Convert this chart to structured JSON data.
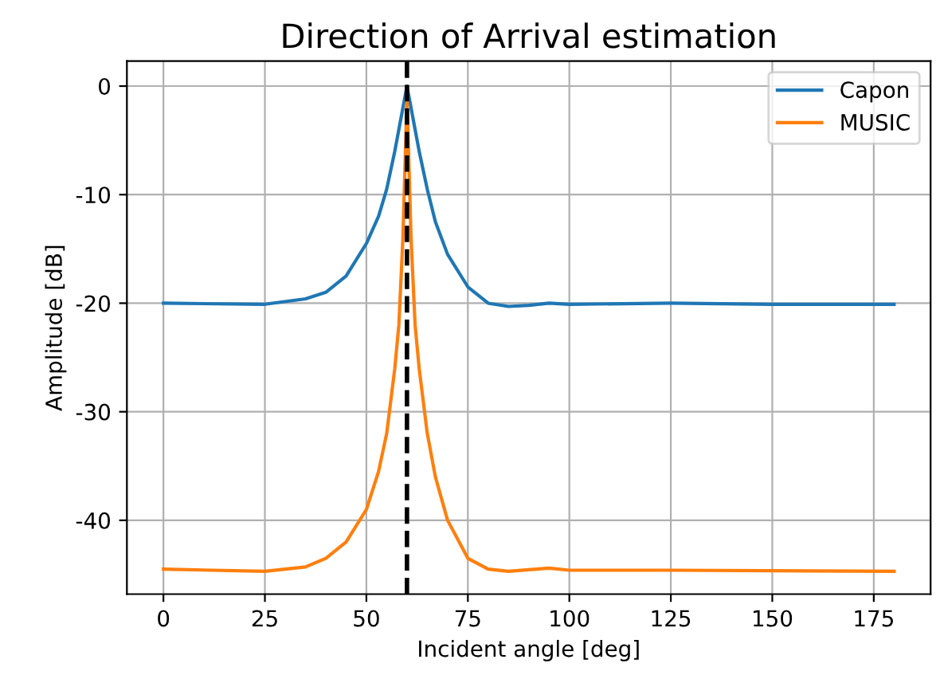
{
  "chart_data": {
    "type": "line",
    "title": "Direction of Arrival estimation",
    "xlabel": "Incident angle [deg]",
    "ylabel": "Amplitude [dB]",
    "xlim": [
      -9,
      189
    ],
    "xticks": [
      0,
      25,
      50,
      75,
      100,
      125,
      150,
      175
    ],
    "ylim": [
      -46.8,
      2.3
    ],
    "yticks": [
      -40,
      -30,
      -20,
      -10,
      0
    ],
    "grid": true,
    "legend": "top right",
    "line_style": "solid",
    "series": [
      {
        "name": "Capon",
        "color": "#1f77b4",
        "x": [
          0,
          25,
          35,
          40,
          45,
          50,
          53,
          55,
          57,
          58,
          59,
          60,
          61,
          62,
          63,
          65,
          67,
          70,
          75,
          80,
          85,
          90,
          95,
          100,
          125,
          150,
          180
        ],
        "values": [
          -20,
          -20.1,
          -19.6,
          -19,
          -17.5,
          -14.5,
          -12,
          -9.5,
          -6,
          -4,
          -2,
          0,
          -2,
          -4,
          -6,
          -9.5,
          -12.5,
          -15.5,
          -18.5,
          -20,
          -20.3,
          -20.2,
          -20,
          -20.1,
          -20,
          -20.1,
          -20.1
        ]
      },
      {
        "name": "MUSIC",
        "color": "#ff7f0e",
        "x": [
          0,
          25,
          35,
          40,
          45,
          50,
          53,
          55,
          57,
          58,
          59,
          60,
          61,
          62,
          63,
          65,
          67,
          70,
          75,
          80,
          85,
          95,
          100,
          125,
          180
        ],
        "values": [
          -44.5,
          -44.7,
          -44.3,
          -43.5,
          -42,
          -39,
          -35.5,
          -32,
          -26,
          -22,
          -14,
          -1,
          -14,
          -22,
          -26,
          -32,
          -36,
          -40,
          -43.5,
          -44.5,
          -44.7,
          -44.4,
          -44.6,
          -44.6,
          -44.7
        ]
      }
    ],
    "ref_lines": [
      {
        "axis": "x",
        "value": 60,
        "color": "#000000",
        "line_style": "dashed"
      }
    ]
  }
}
